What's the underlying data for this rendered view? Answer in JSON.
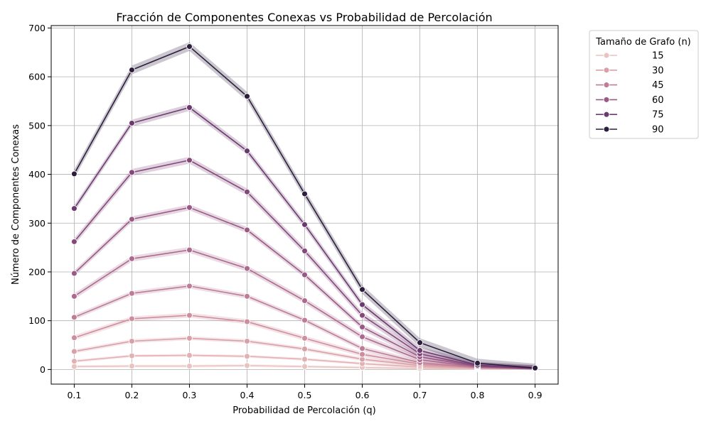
{
  "chart_data": {
    "type": "line",
    "title": "Fracción de Componentes Conexas vs Probabilidad de Percolación",
    "xlabel": "Probabilidad de Percolación (q)",
    "ylabel": "Número de Componentes Conexas",
    "x": [
      0.1,
      0.2,
      0.3,
      0.4,
      0.5,
      0.6,
      0.7,
      0.8,
      0.9
    ],
    "xticks": [
      "0.1",
      "0.2",
      "0.3",
      "0.4",
      "0.5",
      "0.6",
      "0.7",
      "0.8",
      "0.9"
    ],
    "yticks": [
      "0",
      "100",
      "200",
      "300",
      "400",
      "500",
      "600",
      "700"
    ],
    "xlim": [
      0.06,
      0.94
    ],
    "ylim": [
      -30,
      705
    ],
    "grid": true,
    "legend": {
      "title": "Tamaño de Grafo (n)",
      "placement": "outside-top-right"
    },
    "series": [
      {
        "name": "15",
        "color": "#e8c3c0",
        "values": [
          6,
          7,
          7,
          8,
          6,
          4,
          2,
          1,
          1
        ],
        "band": 3
      },
      {
        "name": "",
        "color": "#e3b1b3",
        "values": [
          17,
          28,
          29,
          27,
          21,
          12,
          5,
          2,
          1
        ],
        "band": 3
      },
      {
        "name": "30",
        "color": "#d9a0a8",
        "values": [
          37,
          58,
          64,
          58,
          42,
          21,
          8,
          3,
          1
        ],
        "band": 4
      },
      {
        "name": "",
        "color": "#cf8e9f",
        "values": [
          65,
          104,
          111,
          98,
          64,
          31,
          11,
          4,
          1
        ],
        "band": 5
      },
      {
        "name": "45",
        "color": "#bd7d97",
        "values": [
          107,
          156,
          171,
          150,
          101,
          43,
          14,
          4,
          1
        ],
        "band": 5
      },
      {
        "name": "",
        "color": "#ad6a8e",
        "values": [
          150,
          227,
          245,
          207,
          141,
          67,
          20,
          5,
          1
        ],
        "band": 6
      },
      {
        "name": "60",
        "color": "#9a5a86",
        "values": [
          197,
          308,
          332,
          286,
          194,
          87,
          26,
          6,
          2
        ],
        "band": 6
      },
      {
        "name": "",
        "color": "#84487b",
        "values": [
          262,
          404,
          429,
          364,
          243,
          111,
          32,
          7,
          2
        ],
        "band": 7
      },
      {
        "name": "75",
        "color": "#6b3a6f",
        "values": [
          330,
          505,
          537,
          448,
          297,
          133,
          39,
          9,
          2
        ],
        "band": 7
      },
      {
        "name": "90",
        "color": "#2d1e3e",
        "values": [
          401,
          614,
          662,
          560,
          360,
          164,
          55,
          13,
          3
        ],
        "band": 9
      }
    ],
    "legend_entries": [
      {
        "label": "15",
        "color": "#e8c3c0"
      },
      {
        "label": "30",
        "color": "#d9a0a8"
      },
      {
        "label": "45",
        "color": "#bd7d97"
      },
      {
        "label": "60",
        "color": "#9a5a86"
      },
      {
        "label": "75",
        "color": "#6b3a6f"
      },
      {
        "label": "90",
        "color": "#2d1e3e"
      }
    ]
  }
}
